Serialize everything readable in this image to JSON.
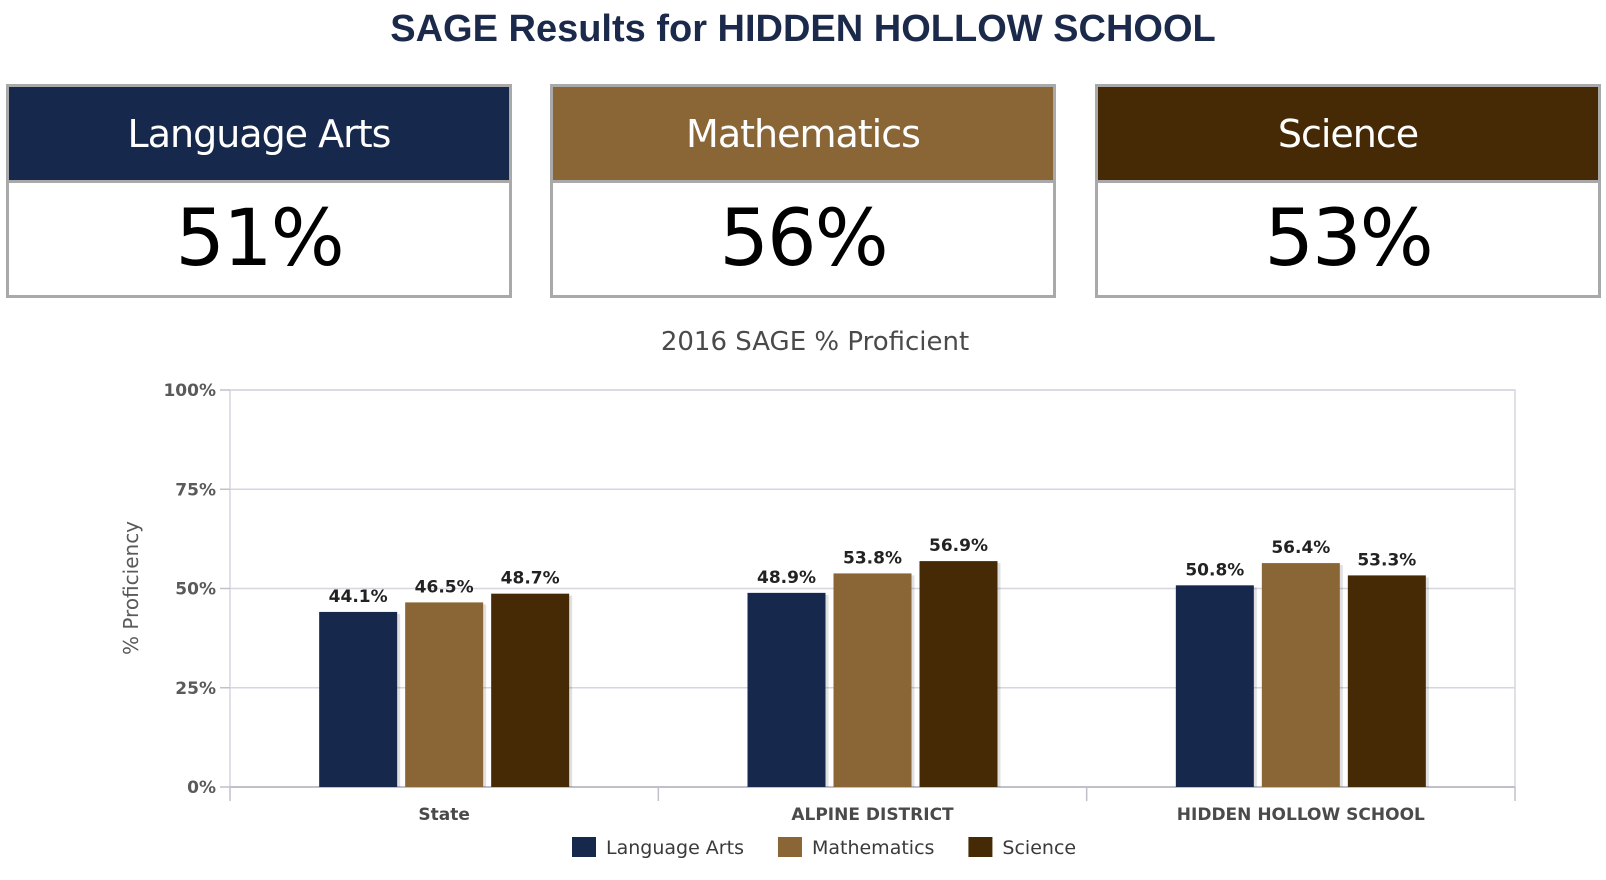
{
  "page": {
    "title": "SAGE Results for HIDDEN HOLLOW SCHOOL"
  },
  "cards": [
    {
      "label": "Language Arts",
      "value": "51%",
      "color": "#16284c"
    },
    {
      "label": "Mathematics",
      "value": "56%",
      "color": "#8a6536"
    },
    {
      "label": "Science",
      "value": "53%",
      "color": "#462a05"
    }
  ],
  "chart_data": {
    "type": "bar",
    "title": "2016 SAGE % Proficient",
    "xlabel": "",
    "ylabel": "% Proficiency",
    "ylim": [
      0,
      100
    ],
    "yticks": [
      0,
      25,
      50,
      75,
      100
    ],
    "ytick_labels": [
      "0%",
      "25%",
      "50%",
      "75%",
      "100%"
    ],
    "grid": true,
    "legend_position": "bottom",
    "categories": [
      "State",
      "ALPINE DISTRICT",
      "HIDDEN HOLLOW SCHOOL"
    ],
    "series": [
      {
        "name": "Language Arts",
        "color": "#16284c",
        "values": [
          44.1,
          48.9,
          50.8
        ],
        "labels": [
          "44.1%",
          "48.9%",
          "50.8%"
        ]
      },
      {
        "name": "Mathematics",
        "color": "#8a6536",
        "values": [
          46.5,
          53.8,
          56.4
        ],
        "labels": [
          "46.5%",
          "53.8%",
          "56.4%"
        ]
      },
      {
        "name": "Science",
        "color": "#462a05",
        "values": [
          48.7,
          56.9,
          53.3
        ],
        "labels": [
          "48.7%",
          "56.9%",
          "53.3%"
        ]
      }
    ]
  }
}
